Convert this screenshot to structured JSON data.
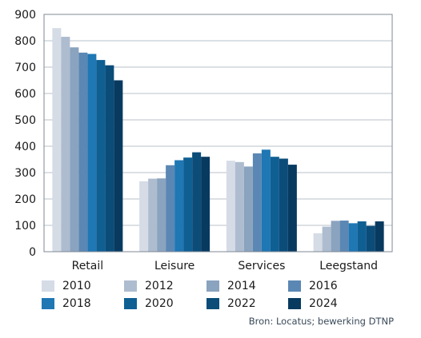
{
  "chart_data": {
    "type": "bar",
    "title": "",
    "xlabel": "",
    "ylabel": "",
    "ylim": [
      0,
      900
    ],
    "yticks": [
      0,
      100,
      200,
      300,
      400,
      500,
      600,
      700,
      800,
      900
    ],
    "grid": "horizontal",
    "categories": [
      "Retail",
      "Leisure",
      "Services",
      "Leegstand"
    ],
    "series": [
      {
        "name": "2010",
        "color": "#d5dce6",
        "values": [
          848,
          267,
          345,
          70
        ]
      },
      {
        "name": "2012",
        "color": "#aebccf",
        "values": [
          815,
          277,
          340,
          95
        ]
      },
      {
        "name": "2014",
        "color": "#8aa3bf",
        "values": [
          775,
          278,
          323,
          117
        ]
      },
      {
        "name": "2016",
        "color": "#5b87b4",
        "values": [
          755,
          328,
          373,
          118
        ]
      },
      {
        "name": "2018",
        "color": "#1f77b4",
        "values": [
          750,
          347,
          387,
          108
        ]
      },
      {
        "name": "2020",
        "color": "#0f5f93",
        "values": [
          727,
          357,
          360,
          115
        ]
      },
      {
        "name": "2022",
        "color": "#0b4c79",
        "values": [
          707,
          377,
          353,
          98
        ]
      },
      {
        "name": "2024",
        "color": "#083a60",
        "values": [
          650,
          360,
          330,
          115
        ]
      }
    ],
    "legend_position": "bottom"
  },
  "source_text": "Bron: Locatus; bewerking DTNP"
}
